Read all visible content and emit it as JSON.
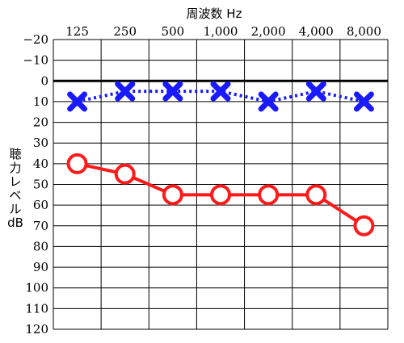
{
  "chart_data": {
    "type": "line",
    "title": "周波数 Hz",
    "ylabel_lines": [
      "聴",
      "力",
      "レ",
      "ベ",
      "ル",
      "dB"
    ],
    "categories": [
      "125",
      "250",
      "500",
      "1,000",
      "2,000",
      "4,000",
      "8,000"
    ],
    "y_ticks": [
      "−20",
      "−10",
      "0",
      "10",
      "20",
      "30",
      "40",
      "50",
      "60",
      "70",
      "80",
      "90",
      "100",
      "110",
      "120"
    ],
    "ylim": [
      -20,
      120
    ],
    "y_inverted": true,
    "reference_line_at": 0,
    "grid": true,
    "series": [
      {
        "marker": "x",
        "line_style": "dotted",
        "color": "#1a1aff",
        "values": [
          10,
          5,
          5,
          5,
          10,
          5,
          10
        ]
      },
      {
        "marker": "o",
        "line_style": "solid",
        "color": "#ff1a1a",
        "values": [
          40,
          45,
          55,
          55,
          55,
          55,
          70
        ]
      }
    ]
  }
}
